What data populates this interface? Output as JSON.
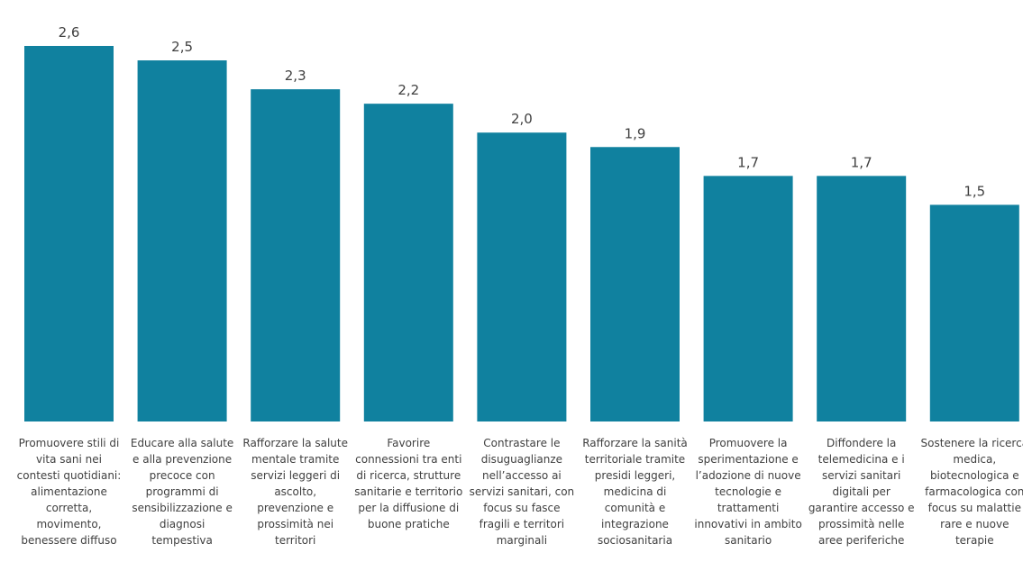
{
  "chart_data": {
    "type": "bar",
    "categories": [
      "Promuovere stili di vita sani nei contesti quotidiani: alimentazione corretta, movimento, benessere diffuso",
      "Educare alla salute e alla prevenzione precoce con programmi di sensibilizzazione e diagnosi tempestiva",
      "Rafforzare la salute mentale tramite servizi leggeri di ascolto, prevenzione e prossimità nei territori",
      "Favorire connessioni tra enti di ricerca, strutture sanitarie e territorio per la diffusione di buone pratiche",
      "Contrastare le disuguaglianze nell’accesso ai servizi sanitari, con focus su fasce fragili e territori marginali",
      "Rafforzare la sanità territoriale tramite presidi leggeri, medicina di comunità e integrazione sociosanitaria",
      "Promuovere la sperimentazione e l’adozione di nuove tecnologie e trattamenti innovativi in ambito sanitario",
      "Diffondere la telemedicina e i servizi sanitari digitali per garantire accesso e prossimità nelle aree periferiche",
      "Sostenere la ricerca medica, biotecnologica e farmacologica con focus su malattie rare e nuove terapie"
    ],
    "values": [
      2.6,
      2.5,
      2.3,
      2.2,
      2.0,
      1.9,
      1.7,
      1.7,
      1.5
    ],
    "value_labels": [
      "2,6",
      "2,5",
      "2,3",
      "2,2",
      "2,0",
      "1,9",
      "1,7",
      "1,7",
      "1,5"
    ],
    "color": "#10819f"
  }
}
